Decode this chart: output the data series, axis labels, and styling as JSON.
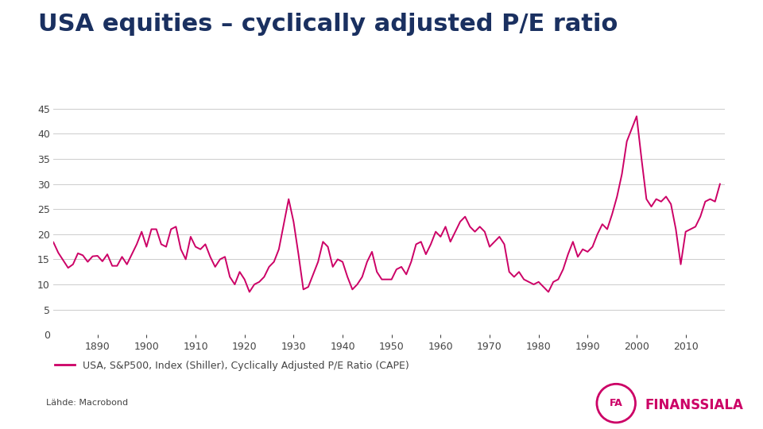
{
  "title": "USA equities – cyclically adjusted P/E ratio",
  "title_color": "#1a3060",
  "title_fontsize": 22,
  "line_color": "#cc0066",
  "line_width": 1.4,
  "background_color": "#ffffff",
  "ylim": [
    0,
    47
  ],
  "yticks": [
    0,
    5,
    10,
    15,
    20,
    25,
    30,
    35,
    40,
    45
  ],
  "xticks": [
    1890,
    1900,
    1910,
    1920,
    1930,
    1940,
    1950,
    1960,
    1970,
    1980,
    1990,
    2000,
    2010
  ],
  "xlim": [
    1881,
    2018
  ],
  "legend_label": "USA, S&P500, Index (Shiller), Cyclically Adjusted P/E Ratio (CAPE)",
  "source_label": "Lähde: Macrobond",
  "grid_color": "#cccccc",
  "tick_color": "#444444",
  "tick_fontsize": 9,
  "source_fontsize": 8,
  "legend_fontsize": 9,
  "finanssiala_color": "#cc0066",
  "cape_data": [
    [
      1881,
      18.4
    ],
    [
      1882,
      16.3
    ],
    [
      1883,
      14.8
    ],
    [
      1884,
      13.3
    ],
    [
      1885,
      14.0
    ],
    [
      1886,
      16.2
    ],
    [
      1887,
      15.8
    ],
    [
      1888,
      14.5
    ],
    [
      1889,
      15.6
    ],
    [
      1890,
      15.7
    ],
    [
      1891,
      14.6
    ],
    [
      1892,
      16.0
    ],
    [
      1893,
      13.7
    ],
    [
      1894,
      13.7
    ],
    [
      1895,
      15.5
    ],
    [
      1896,
      14.0
    ],
    [
      1897,
      16.0
    ],
    [
      1898,
      18.0
    ],
    [
      1899,
      20.5
    ],
    [
      1900,
      17.5
    ],
    [
      1901,
      21.0
    ],
    [
      1902,
      21.0
    ],
    [
      1903,
      18.0
    ],
    [
      1904,
      17.5
    ],
    [
      1905,
      21.0
    ],
    [
      1906,
      21.5
    ],
    [
      1907,
      17.0
    ],
    [
      1908,
      15.0
    ],
    [
      1909,
      19.5
    ],
    [
      1910,
      17.5
    ],
    [
      1911,
      17.0
    ],
    [
      1912,
      18.0
    ],
    [
      1913,
      15.5
    ],
    [
      1914,
      13.5
    ],
    [
      1915,
      15.0
    ],
    [
      1916,
      15.5
    ],
    [
      1917,
      11.5
    ],
    [
      1918,
      10.0
    ],
    [
      1919,
      12.5
    ],
    [
      1920,
      11.0
    ],
    [
      1921,
      8.5
    ],
    [
      1922,
      10.0
    ],
    [
      1923,
      10.5
    ],
    [
      1924,
      11.5
    ],
    [
      1925,
      13.5
    ],
    [
      1926,
      14.5
    ],
    [
      1927,
      17.0
    ],
    [
      1928,
      22.0
    ],
    [
      1929,
      27.0
    ],
    [
      1930,
      22.5
    ],
    [
      1931,
      16.0
    ],
    [
      1932,
      9.0
    ],
    [
      1933,
      9.5
    ],
    [
      1934,
      12.0
    ],
    [
      1935,
      14.5
    ],
    [
      1936,
      18.5
    ],
    [
      1937,
      17.5
    ],
    [
      1938,
      13.5
    ],
    [
      1939,
      15.0
    ],
    [
      1940,
      14.5
    ],
    [
      1941,
      11.5
    ],
    [
      1942,
      9.0
    ],
    [
      1943,
      10.0
    ],
    [
      1944,
      11.5
    ],
    [
      1945,
      14.5
    ],
    [
      1946,
      16.5
    ],
    [
      1947,
      12.5
    ],
    [
      1948,
      11.0
    ],
    [
      1949,
      11.0
    ],
    [
      1950,
      11.0
    ],
    [
      1951,
      13.0
    ],
    [
      1952,
      13.5
    ],
    [
      1953,
      12.0
    ],
    [
      1954,
      14.5
    ],
    [
      1955,
      18.0
    ],
    [
      1956,
      18.5
    ],
    [
      1957,
      16.0
    ],
    [
      1958,
      18.0
    ],
    [
      1959,
      20.5
    ],
    [
      1960,
      19.5
    ],
    [
      1961,
      21.5
    ],
    [
      1962,
      18.5
    ],
    [
      1963,
      20.5
    ],
    [
      1964,
      22.5
    ],
    [
      1965,
      23.5
    ],
    [
      1966,
      21.5
    ],
    [
      1967,
      20.5
    ],
    [
      1968,
      21.5
    ],
    [
      1969,
      20.5
    ],
    [
      1970,
      17.5
    ],
    [
      1971,
      18.5
    ],
    [
      1972,
      19.5
    ],
    [
      1973,
      18.0
    ],
    [
      1974,
      12.5
    ],
    [
      1975,
      11.5
    ],
    [
      1976,
      12.5
    ],
    [
      1977,
      11.0
    ],
    [
      1978,
      10.5
    ],
    [
      1979,
      10.0
    ],
    [
      1980,
      10.5
    ],
    [
      1981,
      9.5
    ],
    [
      1982,
      8.5
    ],
    [
      1983,
      10.5
    ],
    [
      1984,
      11.0
    ],
    [
      1985,
      13.0
    ],
    [
      1986,
      16.0
    ],
    [
      1987,
      18.5
    ],
    [
      1988,
      15.5
    ],
    [
      1989,
      17.0
    ],
    [
      1990,
      16.5
    ],
    [
      1991,
      17.5
    ],
    [
      1992,
      20.0
    ],
    [
      1993,
      22.0
    ],
    [
      1994,
      21.0
    ],
    [
      1995,
      24.0
    ],
    [
      1996,
      27.5
    ],
    [
      1997,
      32.0
    ],
    [
      1998,
      38.5
    ],
    [
      1999,
      41.0
    ],
    [
      2000,
      43.5
    ],
    [
      2001,
      35.0
    ],
    [
      2002,
      27.0
    ],
    [
      2003,
      25.5
    ],
    [
      2004,
      27.0
    ],
    [
      2005,
      26.5
    ],
    [
      2006,
      27.5
    ],
    [
      2007,
      26.0
    ],
    [
      2008,
      21.0
    ],
    [
      2009,
      14.0
    ],
    [
      2010,
      20.5
    ],
    [
      2011,
      21.0
    ],
    [
      2012,
      21.5
    ],
    [
      2013,
      23.5
    ],
    [
      2014,
      26.5
    ],
    [
      2015,
      27.0
    ],
    [
      2016,
      26.5
    ],
    [
      2017,
      30.0
    ]
  ]
}
